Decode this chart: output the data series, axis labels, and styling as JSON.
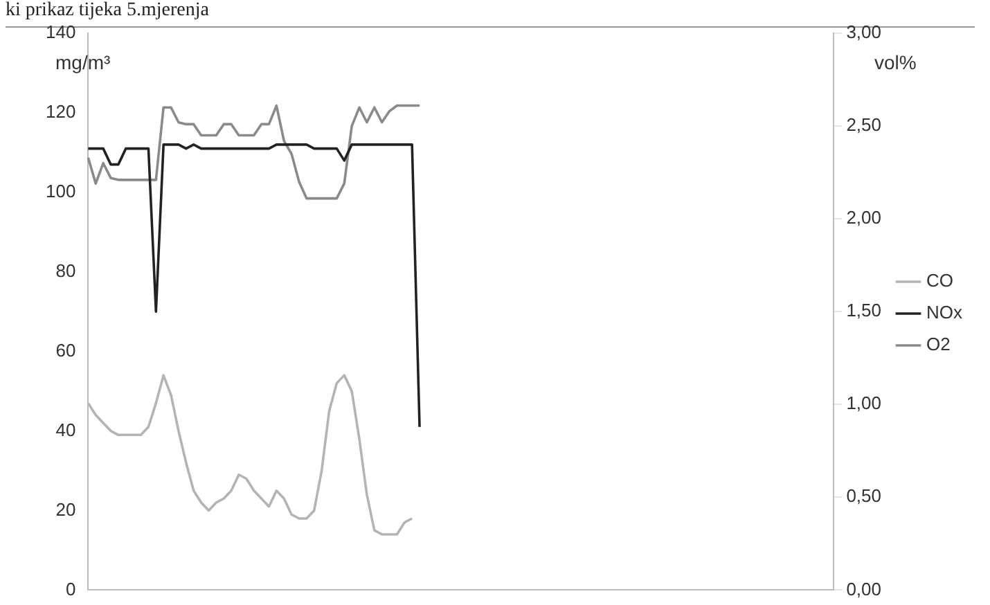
{
  "chart_data": {
    "type": "line",
    "title": "ki prikaz tijeka 5.mjerenja",
    "ylabel": "mg/m³",
    "y2label": "vol%",
    "categories": [
      null,
      null,
      null,
      null,
      null,
      null,
      null,
      null,
      null,
      null,
      null,
      null,
      null,
      null,
      null,
      null,
      null,
      null,
      null,
      null,
      null,
      null,
      null,
      null,
      null,
      null,
      null,
      null,
      null,
      null,
      null,
      null,
      null,
      null,
      null,
      null,
      null,
      null,
      null,
      null,
      null,
      null,
      null,
      null,
      null,
      null,
      null,
      null,
      null,
      null,
      null,
      null,
      null,
      null,
      null,
      null,
      null,
      null,
      null,
      null,
      null,
      null,
      null,
      null,
      null,
      null,
      null,
      null,
      null,
      null,
      null,
      null,
      null,
      null,
      null,
      null,
      null,
      null,
      null,
      null,
      null,
      null,
      null,
      null,
      null,
      null,
      null,
      null,
      null,
      null,
      null,
      null,
      null,
      null,
      null,
      null,
      null,
      null,
      null,
      null
    ],
    "series": [
      {
        "name": "CO",
        "color": "#b4b4b4",
        "values": [
          47,
          44,
          42,
          40,
          39,
          39,
          39,
          39,
          41,
          47,
          54,
          49,
          40,
          32,
          25,
          22,
          20,
          22,
          23,
          25,
          29,
          28,
          25,
          23,
          21,
          25,
          23,
          19,
          18,
          18,
          20,
          30,
          45,
          52,
          54,
          50,
          38,
          24,
          15,
          14,
          14,
          14,
          17,
          18,
          null,
          null,
          null,
          null,
          null,
          null,
          null,
          null,
          null,
          null,
          null,
          null,
          null,
          null,
          null,
          null,
          null,
          null,
          null,
          null,
          null,
          null,
          null,
          null,
          null,
          null,
          null,
          null,
          null,
          null,
          null,
          null,
          null,
          null,
          null,
          null,
          null,
          null,
          null,
          null,
          null,
          null,
          null,
          null,
          null,
          null,
          null,
          null,
          null,
          null,
          null,
          null,
          null,
          null,
          null,
          null
        ]
      },
      {
        "name": "NOx",
        "color": "#222222",
        "values": [
          111,
          111,
          111,
          107,
          107,
          111,
          111,
          111,
          111,
          70,
          112,
          112,
          112,
          111,
          112,
          111,
          111,
          111,
          111,
          111,
          111,
          111,
          111,
          111,
          111,
          112,
          112,
          112,
          112,
          112,
          111,
          111,
          111,
          111,
          108,
          112,
          112,
          112,
          112,
          112,
          112,
          112,
          112,
          112,
          41,
          null,
          null,
          null,
          null,
          null,
          null,
          null,
          null,
          null,
          null,
          null,
          null,
          null,
          null,
          null,
          null,
          null,
          null,
          null,
          null,
          null,
          null,
          null,
          null,
          null,
          null,
          null,
          null,
          null,
          null,
          null,
          null,
          null,
          null,
          null,
          null,
          null,
          null,
          null,
          null,
          null,
          null,
          null,
          null,
          null,
          null,
          null,
          null,
          null,
          null,
          null,
          null,
          null,
          null,
          null
        ]
      },
      {
        "name": "O2",
        "color": "#8a8a8a",
        "axis": "y2",
        "values": [
          2.33,
          2.19,
          2.3,
          2.22,
          2.21,
          2.21,
          2.21,
          2.21,
          2.21,
          2.21,
          2.6,
          2.6,
          2.52,
          2.51,
          2.51,
          2.45,
          2.45,
          2.45,
          2.51,
          2.51,
          2.45,
          2.45,
          2.45,
          2.51,
          2.51,
          2.61,
          2.42,
          2.35,
          2.2,
          2.11,
          2.11,
          2.11,
          2.11,
          2.11,
          2.19,
          2.5,
          2.6,
          2.52,
          2.6,
          2.52,
          2.58,
          2.61,
          2.61,
          2.61,
          2.61,
          null,
          null,
          null,
          null,
          null,
          null,
          null,
          null,
          null,
          null,
          null,
          null,
          null,
          null,
          null,
          null,
          null,
          null,
          null,
          null,
          null,
          null,
          null,
          null,
          null,
          null,
          null,
          null,
          null,
          null,
          null,
          null,
          null,
          null,
          null,
          null,
          null,
          null,
          null,
          null,
          null,
          null,
          null,
          null,
          null,
          null,
          null,
          null,
          null,
          null,
          null,
          null,
          null,
          null,
          null
        ]
      }
    ],
    "ylim": [
      0,
      140
    ],
    "yticks": [
      0,
      20,
      40,
      60,
      80,
      100,
      120,
      140
    ],
    "y2lim": [
      0,
      3
    ],
    "y2ticks": [
      {
        "value": 0,
        "label": "0,00"
      },
      {
        "value": 0.5,
        "label": "0,50"
      },
      {
        "value": 1,
        "label": "1,00"
      },
      {
        "value": 1.5,
        "label": "1,50"
      },
      {
        "value": 2,
        "label": "2,00"
      },
      {
        "value": 2.5,
        "label": "2,50"
      },
      {
        "value": 3,
        "label": "3,00"
      }
    ],
    "tick_labels": "y",
    "grid": false,
    "legend": "right",
    "marker": "none",
    "line_style": "solid"
  }
}
